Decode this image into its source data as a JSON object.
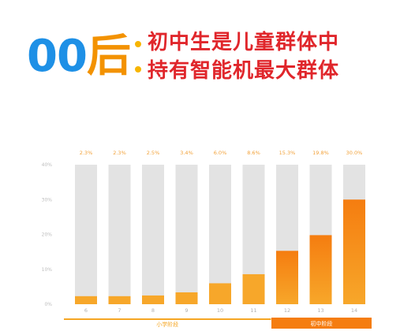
{
  "headline": {
    "title_blue": "00",
    "title_orange": "后",
    "line1": "初中生是儿童群体中",
    "line2": "持有智能机最大群体"
  },
  "chart_data": {
    "type": "bar",
    "categories": [
      "6",
      "7",
      "8",
      "9",
      "10",
      "11",
      "12",
      "13",
      "14"
    ],
    "values": [
      2.3,
      2.3,
      2.5,
      3.4,
      6.0,
      8.6,
      15.3,
      19.8,
      30.0
    ],
    "value_labels": [
      "2.3%",
      "2.3%",
      "2.5%",
      "3.4%",
      "6.0%",
      "8.6%",
      "15.3%",
      "19.8%",
      "30.0%"
    ],
    "ylim": [
      0,
      40
    ],
    "yticks": [
      "0%",
      "10%",
      "20%",
      "30%",
      "40%"
    ],
    "groups": [
      {
        "label": "小学阶段",
        "from": 0,
        "to": 5
      },
      {
        "label": "初中阶段",
        "from": 6,
        "to": 8
      }
    ],
    "colors": {
      "background_bar": "#e3e3e3",
      "bar_light": "#f7a72a",
      "bar_dark": "#f57d10",
      "label": "#f2a23a"
    }
  }
}
